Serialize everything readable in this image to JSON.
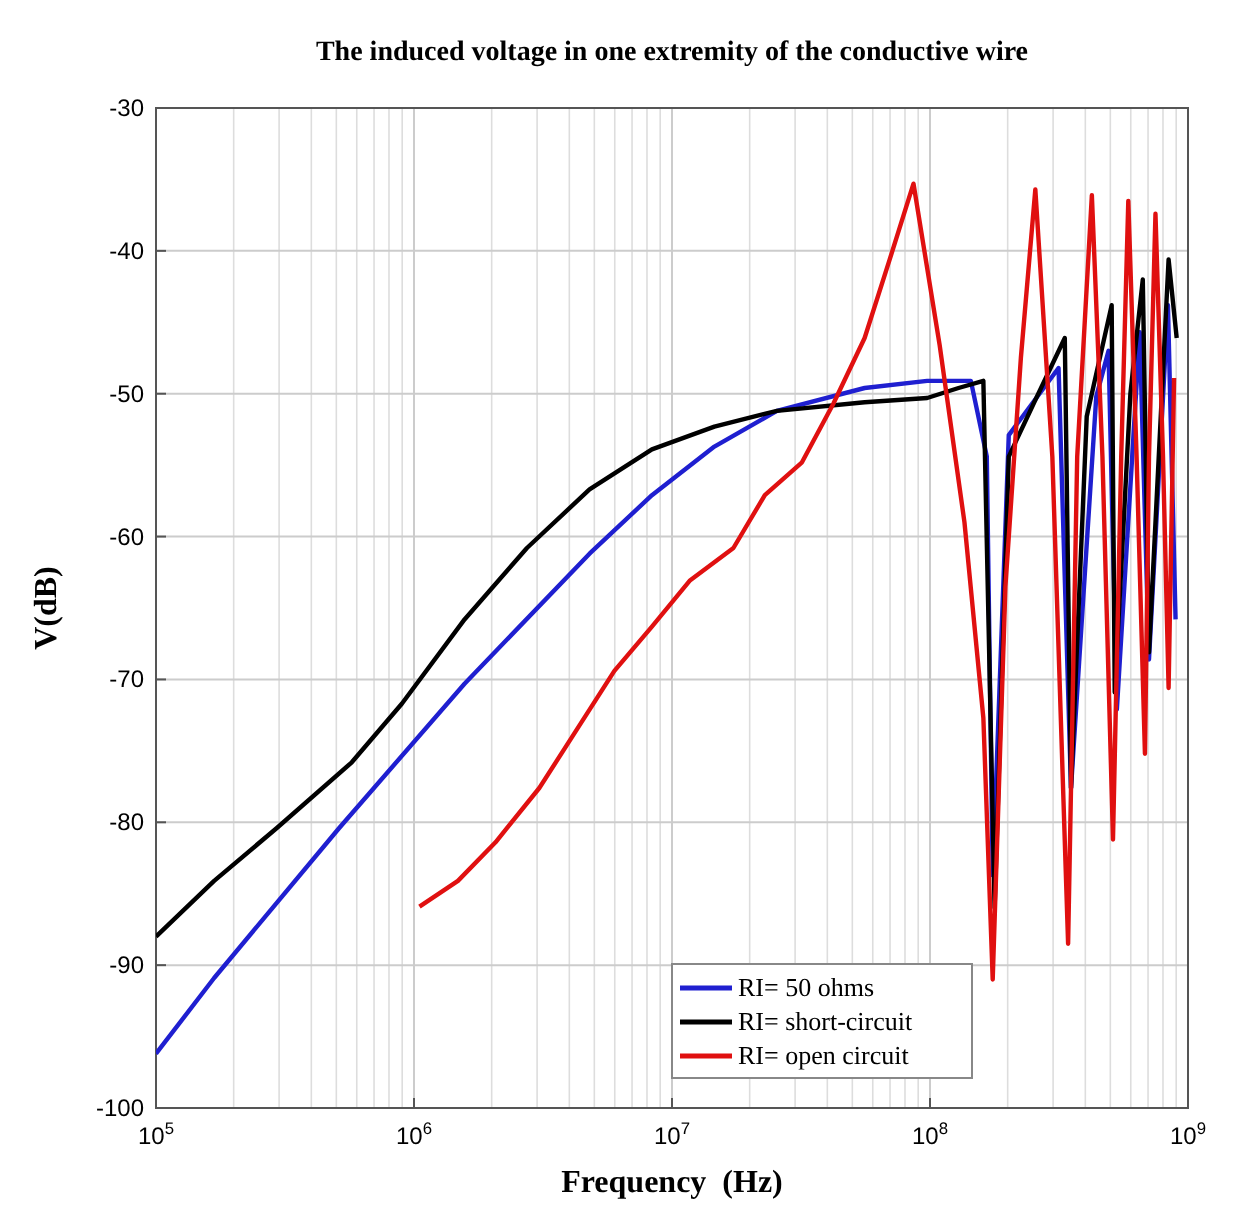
{
  "chart_data": {
    "type": "line",
    "title": "The induced voltage in one extremity of the conductive wire",
    "xlabel": "Frequency  (Hz)",
    "ylabel": "V(dB)",
    "log": "x",
    "grid": true,
    "legend": "bottom right",
    "line_style": "solid",
    "marker": "none",
    "xlim": [
      100000,
      1000000000
    ],
    "xticks": [
      {
        "value": 100000,
        "label": "10$^{5}$"
      },
      {
        "value": 1000000,
        "label": "10$^{6}$"
      },
      {
        "value": 10000000,
        "label": "10$^{7}$"
      },
      {
        "value": 100000000,
        "label": "10$^{8}$"
      },
      {
        "value": 1000000000,
        "label": "10$^{9}$"
      }
    ],
    "ylim": [
      -100,
      -30
    ],
    "yticks": [
      -100,
      -90,
      -80,
      -70,
      -60,
      -50,
      -40,
      -30
    ],
    "series": [
      {
        "name": "RI= 50 ohms",
        "color": "#1f1fd0",
        "x": [
          100000.0,
          168000.0,
          513000.0,
          1570000.0,
          4790000.0,
          8360000.0,
          14600000.0,
          25500000.0,
          55800000.0,
          97500000.0,
          144000000.0,
          166000000.0,
          175000000.0,
          202000000.0,
          315000000.0,
          352000000.0,
          441000000.0,
          492000000.0,
          530000000.0,
          650000000.0,
          706000000.0,
          836000000.0,
          895000000.0
        ],
        "values": [
          -96.2,
          -90.9,
          -80.4,
          -70.3,
          -61.2,
          -57.1,
          -53.7,
          -51.2,
          -49.6,
          -49.1,
          -49.1,
          -54.4,
          -83.7,
          -52.9,
          -48.2,
          -77.6,
          -50.2,
          -47.0,
          -72.1,
          -45.7,
          -68.6,
          -43.8,
          -65.8
        ]
      },
      {
        "name": "RI= short-circuit",
        "color": "#000000",
        "x": [
          100000.0,
          168000.0,
          294000.0,
          574000.0,
          897000.0,
          1570000.0,
          2740000.0,
          4790000.0,
          8360000.0,
          14600000.0,
          25500000.0,
          55800000.0,
          97500000.0,
          129000000.0,
          161000000.0,
          178000000.0,
          202000000.0,
          252000000.0,
          333000000.0,
          352000000.0,
          405000000.0,
          506000000.0,
          520000000.0,
          598000000.0,
          668000000.0,
          706000000.0,
          841000000.0,
          904000000.0
        ],
        "values": [
          -88,
          -84.1,
          -80.4,
          -75.8,
          -71.7,
          -65.8,
          -60.8,
          -56.7,
          -53.9,
          -52.3,
          -51.2,
          -50.6,
          -50.3,
          -49.6,
          -49.1,
          -86,
          -54.4,
          -50.7,
          -46.1,
          -77.6,
          -51.6,
          -43.8,
          -70.9,
          -50,
          -42.0,
          -68.1,
          -40.6,
          -46.1
        ]
      },
      {
        "name": "RI= open circuit",
        "color": "#e01010",
        "x": [
          1050000.0,
          1480000.0,
          2070000.0,
          3060000.0,
          4280000.0,
          5980000.0,
          8360000.0,
          11700000.0,
          17300000.0,
          22900000.0,
          31900000.0,
          42200000.0,
          55800000.0,
          69800000.0,
          86300000.0,
          109000000.0,
          136000000.0,
          161000000.0,
          175000000.0,
          196000000.0,
          225000000.0,
          256000000.0,
          298000000.0,
          343000000.0,
          372000000.0,
          424000000.0,
          466000000.0,
          512000000.0,
          551000000.0,
          587000000.0,
          632000000.0,
          681000000.0,
          706000000.0,
          748000000.0,
          800000000.0,
          841000000.0,
          883000000.0
        ],
        "values": [
          -85.9,
          -84.1,
          -81.4,
          -77.6,
          -73.5,
          -69.4,
          -66.3,
          -63.1,
          -60.8,
          -57.1,
          -54.8,
          -50.7,
          -46.1,
          -40.6,
          -35.3,
          -46.6,
          -59.0,
          -72.7,
          -91.0,
          -63.5,
          -47.5,
          -35.7,
          -54.4,
          -88.5,
          -54.4,
          -36.1,
          -54.4,
          -81.2,
          -54.4,
          -36.5,
          -54.4,
          -75.2,
          -54.4,
          -37.4,
          -54.4,
          -70.6,
          -48.9
        ]
      }
    ]
  }
}
